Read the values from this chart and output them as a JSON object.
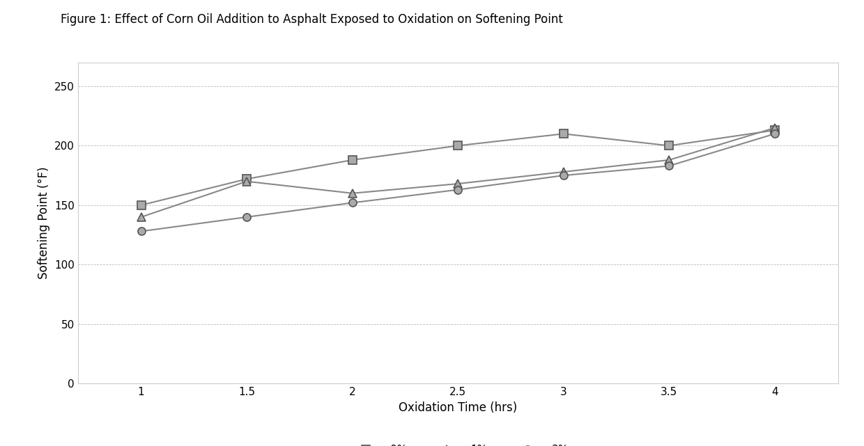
{
  "title": "Figure 1: Effect of Corn Oil Addition to Asphalt Exposed to Oxidation on Softening Point",
  "xlabel": "Oxidation Time (hrs)",
  "ylabel": "Softening Point (°F)",
  "x": [
    1,
    1.5,
    2,
    2.5,
    3,
    3.5,
    4
  ],
  "series": {
    "0%": [
      150,
      172,
      188,
      200,
      210,
      200,
      213
    ],
    "1%": [
      140,
      170,
      160,
      168,
      178,
      188,
      215
    ],
    "3%": [
      128,
      140,
      152,
      163,
      175,
      183,
      210
    ]
  },
  "markers": {
    "0%": "s",
    "1%": "^",
    "3%": "o"
  },
  "ylim": [
    0,
    270
  ],
  "yticks": [
    0,
    50,
    100,
    150,
    200,
    250
  ],
  "xlim": [
    0.7,
    4.3
  ],
  "xticks": [
    1,
    1.5,
    2,
    2.5,
    3,
    3.5,
    4
  ],
  "grid_color": "#bbbbbb",
  "line_color": "#888888",
  "marker_face_color": "#aaaaaa",
  "marker_edge_color": "#555555",
  "background_color": "#ffffff",
  "title_fontsize": 12,
  "axis_label_fontsize": 12,
  "tick_fontsize": 11,
  "legend_fontsize": 11,
  "linewidth": 1.5,
  "markersize": 8,
  "marker_edge_width": 1.2
}
